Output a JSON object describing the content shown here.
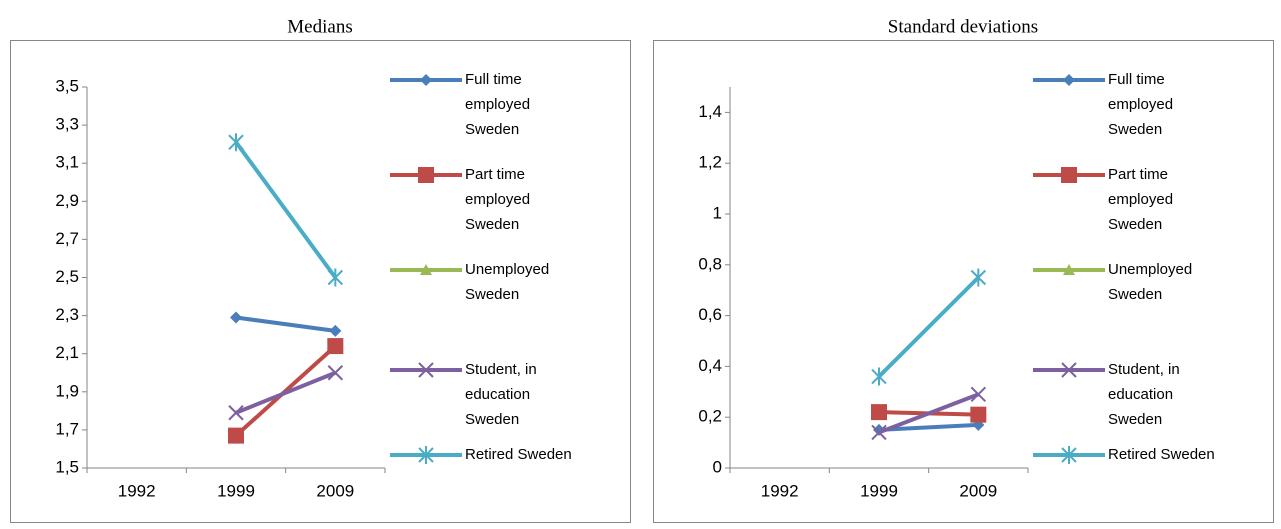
{
  "chart_data": [
    {
      "type": "line",
      "title": "Medians",
      "categories": [
        "1992",
        "1999",
        "2009"
      ],
      "ylim": [
        1.5,
        3.5
      ],
      "yticks": [
        {
          "value": 1.5,
          "label": "1,5"
        },
        {
          "value": 1.7,
          "label": "1,7"
        },
        {
          "value": 1.9,
          "label": "1,9"
        },
        {
          "value": 2.1,
          "label": "2,1"
        },
        {
          "value": 2.3,
          "label": "2,3"
        },
        {
          "value": 2.5,
          "label": "2,5"
        },
        {
          "value": 2.7,
          "label": "2,7"
        },
        {
          "value": 2.9,
          "label": "2,9"
        },
        {
          "value": 3.1,
          "label": "3,1"
        },
        {
          "value": 3.3,
          "label": "3,3"
        },
        {
          "value": 3.5,
          "label": "3,5"
        }
      ],
      "grid": false,
      "legend": "right",
      "series": [
        {
          "name": "Full time employed Sweden",
          "color": "#4a7ebb",
          "marker": "diamond",
          "values": [
            null,
            2.29,
            2.22
          ]
        },
        {
          "name": "Part time employed Sweden",
          "color": "#be4b48",
          "marker": "square",
          "values": [
            null,
            1.67,
            2.14
          ]
        },
        {
          "name": "Unemployed Sweden",
          "color": "#98b954",
          "marker": "triangle",
          "values": [
            null,
            null,
            null
          ]
        },
        {
          "name": "Student, in education Sweden",
          "color": "#7d60a0",
          "marker": "x",
          "values": [
            null,
            1.79,
            2.0
          ]
        },
        {
          "name": "Retired Sweden",
          "color": "#4bacc6",
          "marker": "star",
          "values": [
            null,
            3.21,
            2.5
          ]
        }
      ]
    },
    {
      "type": "line",
      "title": "Standard deviations",
      "categories": [
        "1992",
        "1999",
        "2009"
      ],
      "ylim": [
        0,
        1.5
      ],
      "yticks": [
        0,
        {
          "value": 0.2,
          "label": "0,2"
        },
        {
          "value": 0.4,
          "label": "0,4"
        },
        {
          "value": 0.6,
          "label": "0,6"
        },
        {
          "value": 0.8,
          "label": "0,8"
        },
        1,
        {
          "value": 1.2,
          "label": "1,2"
        },
        {
          "value": 1.4,
          "label": "1,4"
        }
      ],
      "grid": false,
      "legend": "right",
      "series": [
        {
          "name": "Full time employed Sweden",
          "color": "#4a7ebb",
          "marker": "diamond",
          "values": [
            null,
            0.15,
            0.17
          ]
        },
        {
          "name": "Part time employed Sweden",
          "color": "#be4b48",
          "marker": "square",
          "values": [
            null,
            0.22,
            0.21
          ]
        },
        {
          "name": "Unemployed Sweden",
          "color": "#98b954",
          "marker": "triangle",
          "values": [
            null,
            null,
            null
          ]
        },
        {
          "name": "Student, in education Sweden",
          "color": "#7d60a0",
          "marker": "x",
          "values": [
            null,
            0.14,
            0.29
          ]
        },
        {
          "name": "Retired Sweden",
          "color": "#4bacc6",
          "marker": "star",
          "values": [
            null,
            0.36,
            0.75
          ]
        }
      ]
    }
  ]
}
